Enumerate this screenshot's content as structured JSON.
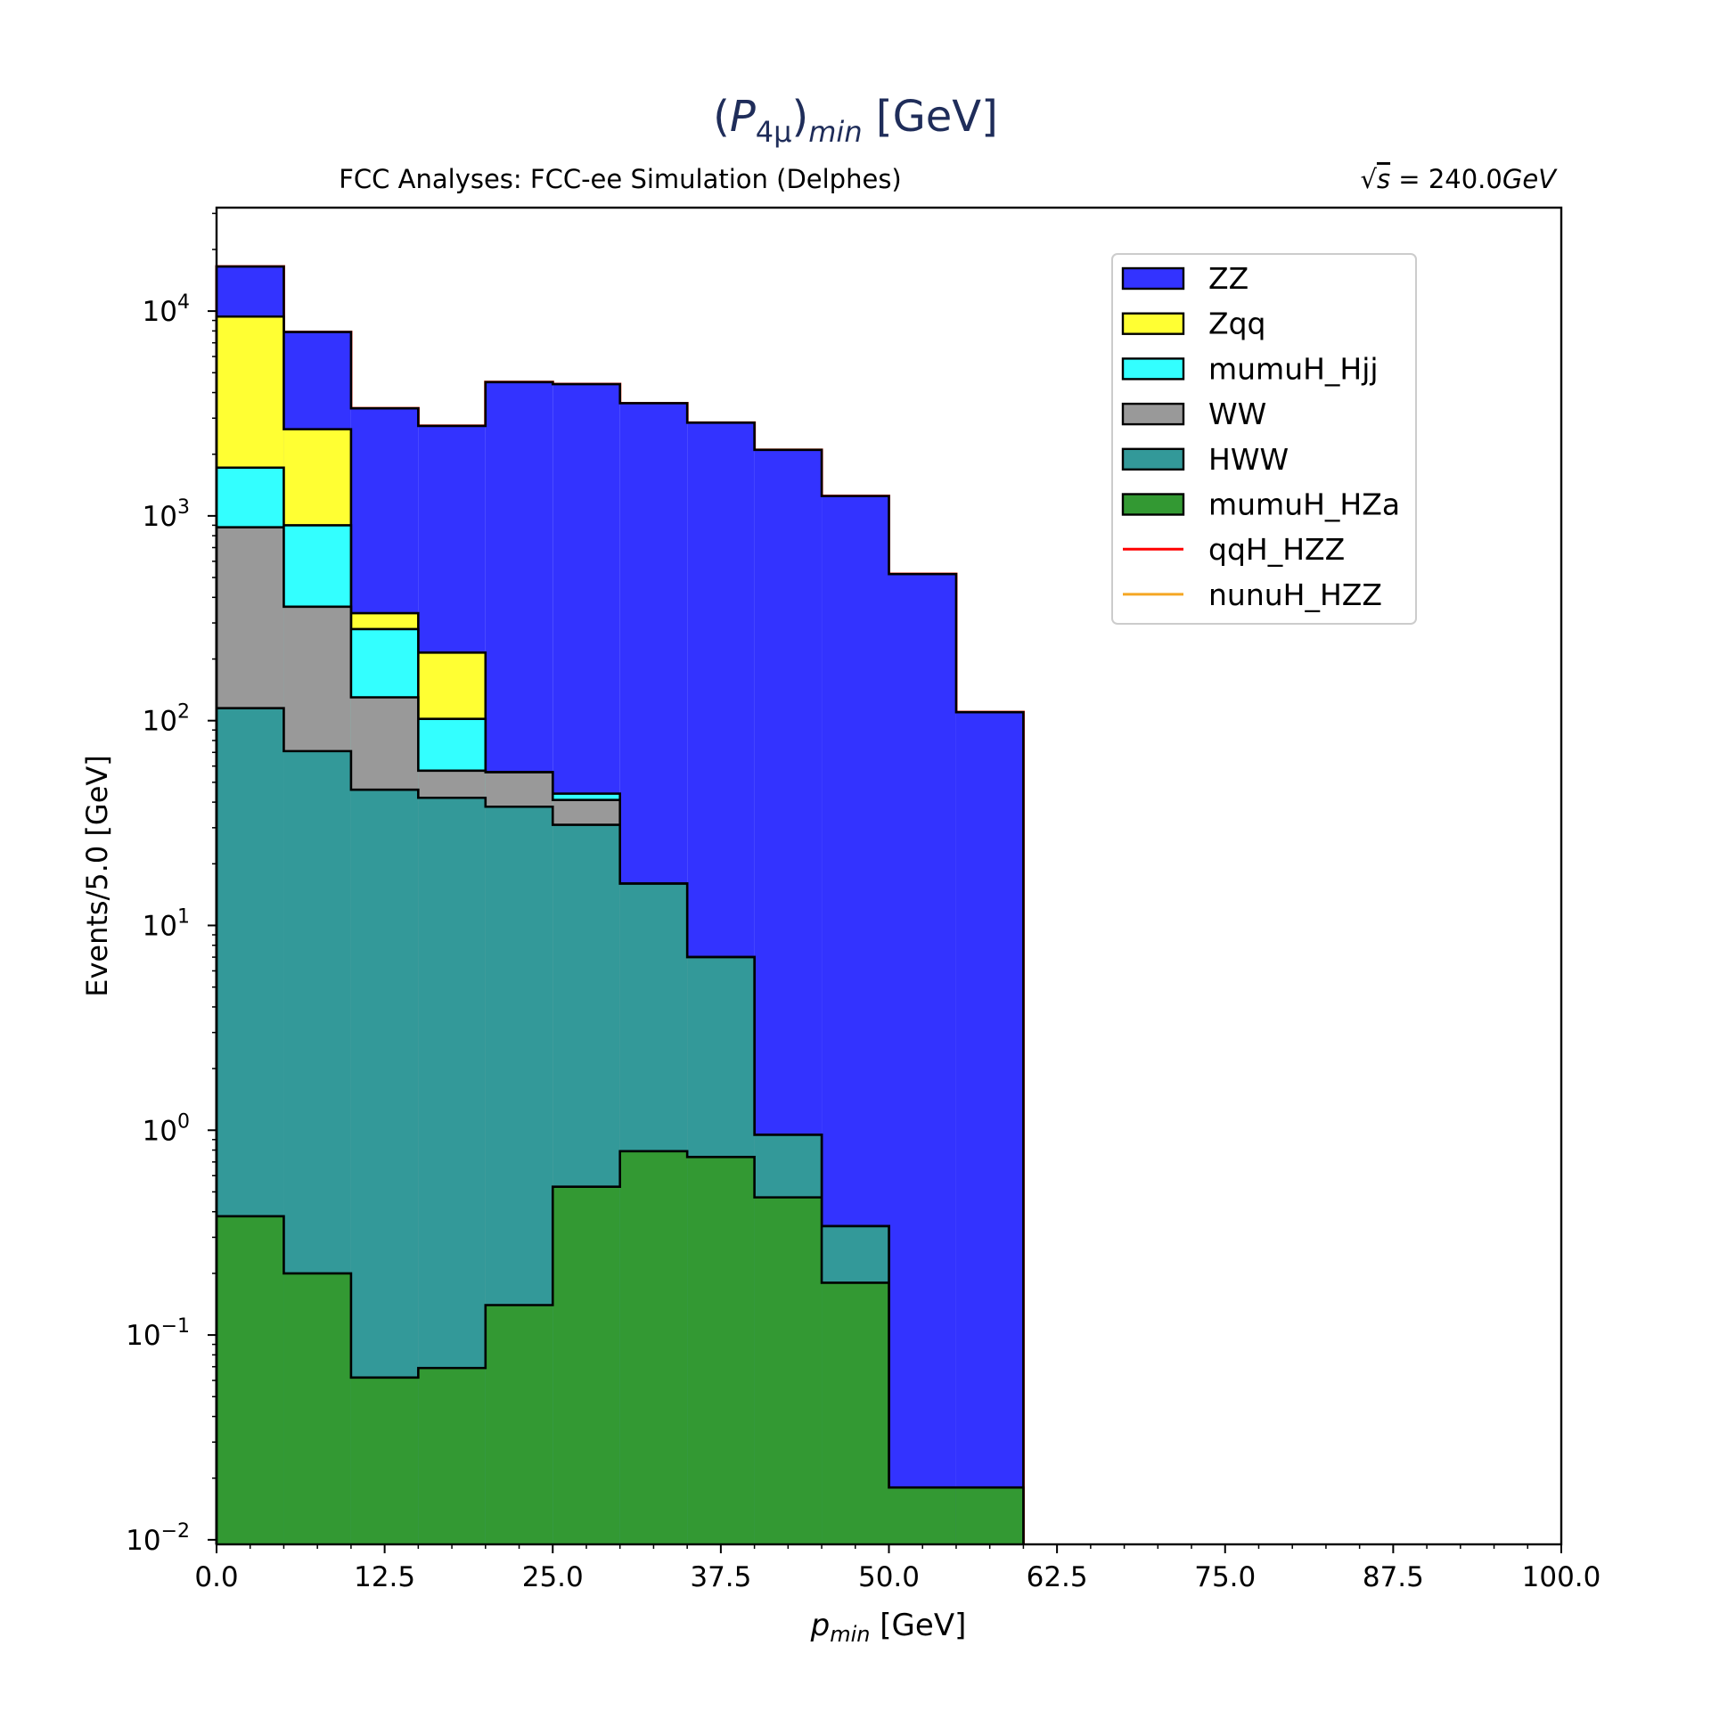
{
  "chart_data": {
    "type": "bar",
    "stacked": true,
    "histogram": true,
    "title": "(P4μ)min [GeV]",
    "title_parts": {
      "open": "(",
      "main": "P",
      "sub": "4μ",
      "close": ")",
      "sub2": "min",
      "unit": " [GeV]"
    },
    "subtitle_left": "FCC Analyses: FCC-ee Simulation (Delphes)",
    "subtitle_right": "√s = 240.0GeV",
    "subtitle_right_parts": {
      "sqrt": "√",
      "s": "s",
      "eq": " = 240.0",
      "unit": "GeV"
    },
    "xlabel": "pmin [GeV]",
    "xlabel_parts": {
      "main": "p",
      "sub": "min",
      "unit": " [GeV]"
    },
    "ylabel": "Events/5.0 [GeV]",
    "yscale": "log",
    "xlim": [
      0,
      100
    ],
    "ylim": [
      0.0095,
      32000
    ],
    "grid": false,
    "legend_position": "top-right",
    "colors": {
      "title": "#1f2d5a",
      "text": "#000000",
      "ZZ": "#3333ff",
      "Zqq": "#ffff33",
      "mumuH_Hjj": "#33ffff",
      "WW": "#999999",
      "HWW": "#339999",
      "mumuH_HZa": "#339933",
      "qqH_HZZ": "#ff0000",
      "nunuH_HZZ": "#f5a623"
    },
    "x_ticks": [
      "0.0",
      "12.5",
      "25.0",
      "37.5",
      "50.0",
      "62.5",
      "75.0",
      "87.5",
      "100.0"
    ],
    "x_tick_values": [
      0,
      12.5,
      25,
      37.5,
      50,
      62.5,
      75,
      87.5,
      100
    ],
    "y_ticks": [
      {
        "value": 0.01,
        "base": "10",
        "exp": "−2"
      },
      {
        "value": 0.1,
        "base": "10",
        "exp": "−1"
      },
      {
        "value": 1,
        "base": "10",
        "exp": "0"
      },
      {
        "value": 10,
        "base": "10",
        "exp": "1"
      },
      {
        "value": 100,
        "base": "10",
        "exp": "2"
      },
      {
        "value": 1000,
        "base": "10",
        "exp": "3"
      },
      {
        "value": 10000,
        "base": "10",
        "exp": "4"
      }
    ],
    "bin_edges": [
      0,
      5,
      10,
      15,
      20,
      25,
      30,
      35,
      40,
      45,
      50,
      55,
      60,
      65,
      70,
      75,
      80,
      85,
      90,
      95,
      100
    ],
    "series": [
      {
        "name": "mumuH_HZa",
        "values": [
          0.38,
          0.2,
          0.062,
          0.069,
          0.14,
          0.53,
          0.79,
          0.74,
          0.47,
          0.18,
          0.018,
          0.018,
          0,
          0,
          0,
          0,
          0,
          0,
          0,
          0
        ]
      },
      {
        "name": "HWW",
        "values": [
          115,
          71,
          46,
          42,
          38,
          31,
          16,
          7,
          0.95,
          0.34,
          0,
          0,
          0,
          0,
          0,
          0,
          0,
          0,
          0,
          0
        ]
      },
      {
        "name": "WW",
        "values": [
          880,
          360,
          130,
          57,
          56,
          41,
          16,
          7,
          0.95,
          0.34,
          0,
          0,
          0,
          0,
          0,
          0,
          0,
          0,
          0,
          0
        ]
      },
      {
        "name": "mumuH_Hjj",
        "values": [
          1720,
          900,
          280,
          102,
          56,
          44,
          16,
          7,
          0.95,
          0.34,
          0,
          0,
          0,
          0,
          0,
          0,
          0,
          0,
          0,
          0
        ]
      },
      {
        "name": "Zqq",
        "values": [
          9400,
          2650,
          335,
          215,
          56,
          44,
          16,
          7,
          0.95,
          0.34,
          0,
          0,
          0,
          0,
          0,
          0,
          0,
          0,
          0,
          0
        ]
      },
      {
        "name": "ZZ",
        "values": [
          16500,
          7900,
          3350,
          2750,
          4500,
          4400,
          3550,
          2850,
          2100,
          1250,
          520,
          110,
          0,
          0,
          0,
          0,
          0,
          0,
          0,
          0
        ]
      },
      {
        "name": "qqH_HZZ",
        "values": [
          16500,
          7900,
          3350,
          2750,
          4500,
          4400,
          3550,
          2850,
          2100,
          1250,
          520,
          110,
          0,
          0,
          0,
          0,
          0,
          0,
          0,
          0
        ]
      },
      {
        "name": "nunuH_HZZ",
        "values": [
          16500,
          7900,
          3350,
          2750,
          4500,
          4400,
          3550,
          2850,
          2100,
          1250,
          520,
          110,
          0,
          0,
          0,
          0,
          0,
          0,
          0,
          0
        ]
      }
    ],
    "legend": [
      {
        "label": "ZZ",
        "kind": "patch"
      },
      {
        "label": "Zqq",
        "kind": "patch"
      },
      {
        "label": "mumuH_Hjj",
        "kind": "patch"
      },
      {
        "label": "WW",
        "kind": "patch"
      },
      {
        "label": "HWW",
        "kind": "patch"
      },
      {
        "label": "mumuH_HZa",
        "kind": "patch"
      },
      {
        "label": "qqH_HZZ",
        "kind": "line"
      },
      {
        "label": "nunuH_HZZ",
        "kind": "line"
      }
    ]
  }
}
